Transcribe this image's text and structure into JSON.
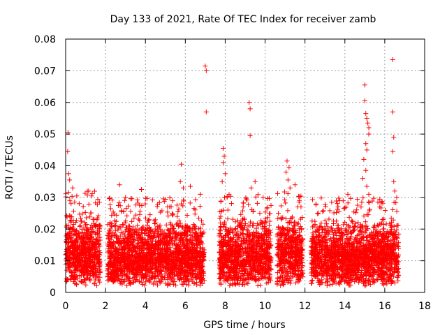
{
  "chart_data": {
    "type": "scatter",
    "title": "Day 133 of 2021, Rate Of TEC Index for receiver zamb",
    "xlabel": "GPS time / hours",
    "ylabel": "ROTI / TECUs",
    "xlim": [
      0,
      18
    ],
    "ylim": [
      0,
      0.08
    ],
    "xticks": [
      0,
      2,
      4,
      6,
      8,
      10,
      12,
      14,
      16,
      18
    ],
    "xtick_labels": [
      "0",
      "2",
      "4",
      "6",
      "8",
      "10",
      "12",
      "14",
      "16",
      "18"
    ],
    "yticks": [
      0,
      0.01,
      0.02,
      0.03,
      0.04,
      0.05,
      0.06,
      0.07,
      0.08
    ],
    "ytick_labels": [
      "0",
      "0.01",
      "0.02",
      "0.03",
      "0.04",
      "0.05",
      "0.06",
      "0.07",
      "0.08"
    ],
    "grid": true,
    "marker": "+",
    "color": "#ff0000",
    "data_windows": [
      {
        "start": 0.0,
        "end": 1.75,
        "typical_max": 0.026
      },
      {
        "start": 2.1,
        "end": 6.95,
        "typical_max": 0.024
      },
      {
        "start": 7.7,
        "end": 10.3,
        "typical_max": 0.025
      },
      {
        "start": 10.6,
        "end": 11.9,
        "typical_max": 0.026
      },
      {
        "start": 12.3,
        "end": 16.7,
        "typical_max": 0.024
      }
    ],
    "notable_points": [
      {
        "x": 0.12,
        "y": 0.0505
      },
      {
        "x": 0.1,
        "y": 0.0445
      },
      {
        "x": 0.15,
        "y": 0.0375
      },
      {
        "x": 0.2,
        "y": 0.0355
      },
      {
        "x": 0.35,
        "y": 0.033
      },
      {
        "x": 1.15,
        "y": 0.032
      },
      {
        "x": 2.7,
        "y": 0.034
      },
      {
        "x": 3.0,
        "y": 0.03
      },
      {
        "x": 3.8,
        "y": 0.0325
      },
      {
        "x": 5.8,
        "y": 0.0405
      },
      {
        "x": 5.75,
        "y": 0.035
      },
      {
        "x": 5.9,
        "y": 0.033
      },
      {
        "x": 6.25,
        "y": 0.0335
      },
      {
        "x": 6.75,
        "y": 0.031
      },
      {
        "x": 7.0,
        "y": 0.0715
      },
      {
        "x": 7.05,
        "y": 0.07
      },
      {
        "x": 7.05,
        "y": 0.057
      },
      {
        "x": 7.9,
        "y": 0.0455
      },
      {
        "x": 7.95,
        "y": 0.043
      },
      {
        "x": 7.9,
        "y": 0.041
      },
      {
        "x": 8.0,
        "y": 0.0375
      },
      {
        "x": 7.85,
        "y": 0.035
      },
      {
        "x": 9.2,
        "y": 0.06
      },
      {
        "x": 9.25,
        "y": 0.058
      },
      {
        "x": 9.25,
        "y": 0.0495
      },
      {
        "x": 9.5,
        "y": 0.035
      },
      {
        "x": 9.3,
        "y": 0.033
      },
      {
        "x": 9.9,
        "y": 0.03
      },
      {
        "x": 11.1,
        "y": 0.0415
      },
      {
        "x": 11.2,
        "y": 0.0395
      },
      {
        "x": 11.05,
        "y": 0.038
      },
      {
        "x": 11.15,
        "y": 0.0355
      },
      {
        "x": 11.25,
        "y": 0.033
      },
      {
        "x": 11.5,
        "y": 0.034
      },
      {
        "x": 14.15,
        "y": 0.031
      },
      {
        "x": 15.0,
        "y": 0.0655
      },
      {
        "x": 15.0,
        "y": 0.0605
      },
      {
        "x": 15.05,
        "y": 0.0565
      },
      {
        "x": 15.1,
        "y": 0.055
      },
      {
        "x": 15.15,
        "y": 0.0535
      },
      {
        "x": 15.2,
        "y": 0.052
      },
      {
        "x": 15.2,
        "y": 0.05
      },
      {
        "x": 15.05,
        "y": 0.047
      },
      {
        "x": 15.1,
        "y": 0.045
      },
      {
        "x": 14.95,
        "y": 0.042
      },
      {
        "x": 15.05,
        "y": 0.0385
      },
      {
        "x": 14.9,
        "y": 0.036
      },
      {
        "x": 15.1,
        "y": 0.0335
      },
      {
        "x": 15.2,
        "y": 0.031
      },
      {
        "x": 16.4,
        "y": 0.0735
      },
      {
        "x": 16.4,
        "y": 0.057
      },
      {
        "x": 16.45,
        "y": 0.049
      },
      {
        "x": 16.4,
        "y": 0.0445
      },
      {
        "x": 16.45,
        "y": 0.035
      },
      {
        "x": 16.5,
        "y": 0.032
      },
      {
        "x": 16.6,
        "y": 0.03
      }
    ]
  }
}
